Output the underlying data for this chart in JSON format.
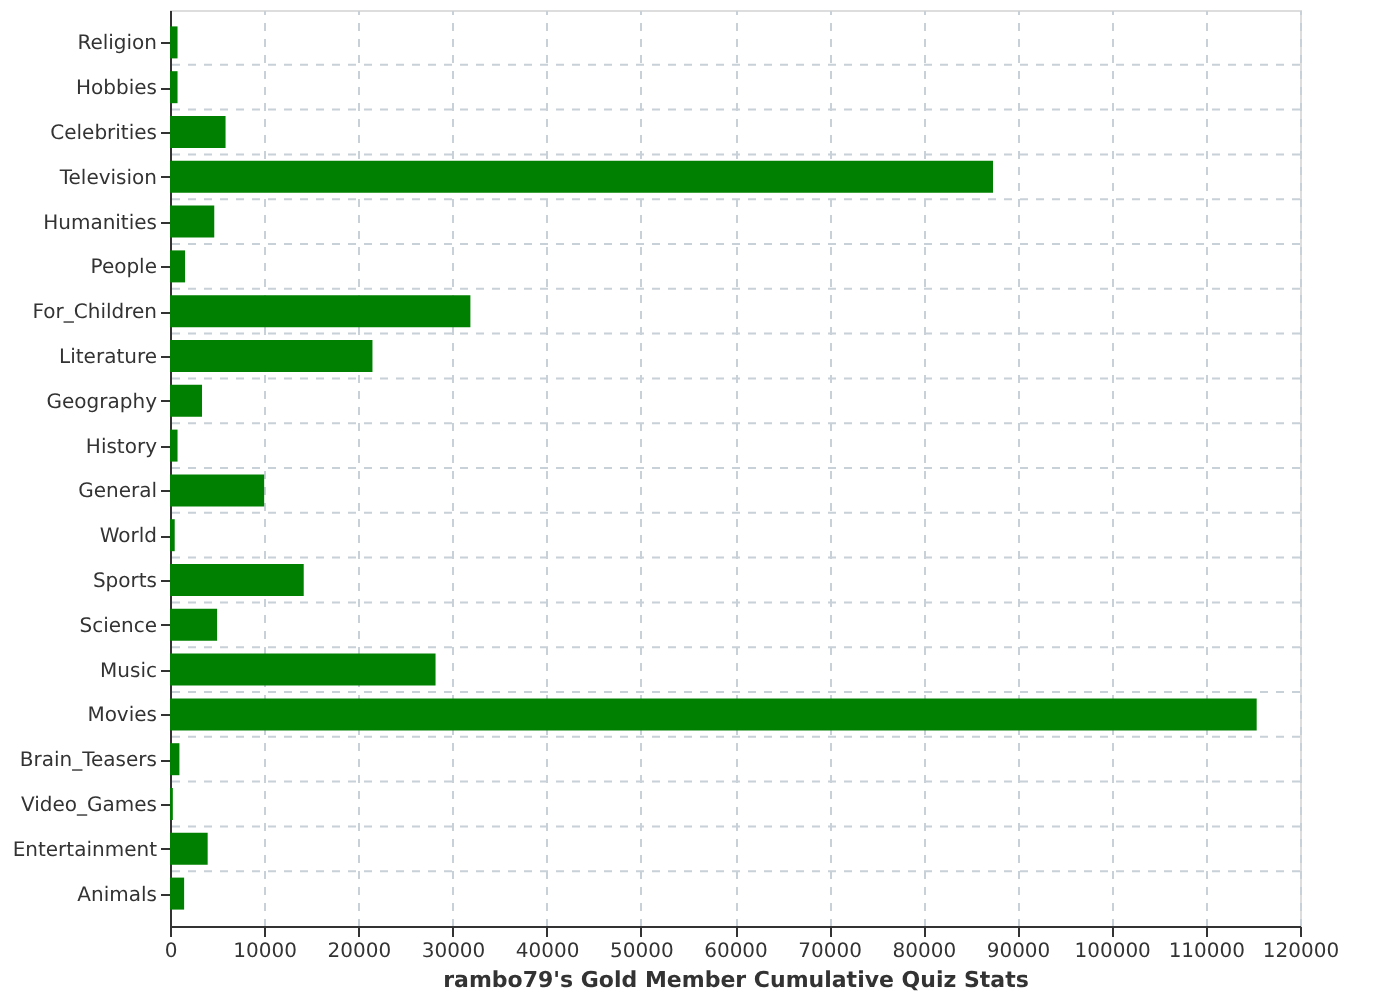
{
  "chart_data": {
    "type": "bar",
    "orientation": "horizontal",
    "xlabel": "rambo79's Gold Member Cumulative Quiz Stats",
    "categories": [
      "Religion",
      "Hobbies",
      "Celebrities",
      "Television",
      "Humanities",
      "People",
      "For_Children",
      "Literature",
      "Geography",
      "History",
      "General",
      "World",
      "Sports",
      "Science",
      "Music",
      "Movies",
      "Brain_Teasers",
      "Video_Games",
      "Entertainment",
      "Animals"
    ],
    "values": [
      800,
      800,
      5900,
      87400,
      4700,
      1600,
      31900,
      21500,
      3400,
      800,
      10000,
      500,
      14200,
      5000,
      28200,
      115400,
      1000,
      300,
      4000,
      1500
    ],
    "color": "#008000",
    "xlim": [
      0,
      120000
    ],
    "xticks": [
      0,
      10000,
      20000,
      30000,
      40000,
      50000,
      60000,
      70000,
      80000,
      90000,
      100000,
      110000,
      120000
    ],
    "grid": true
  }
}
